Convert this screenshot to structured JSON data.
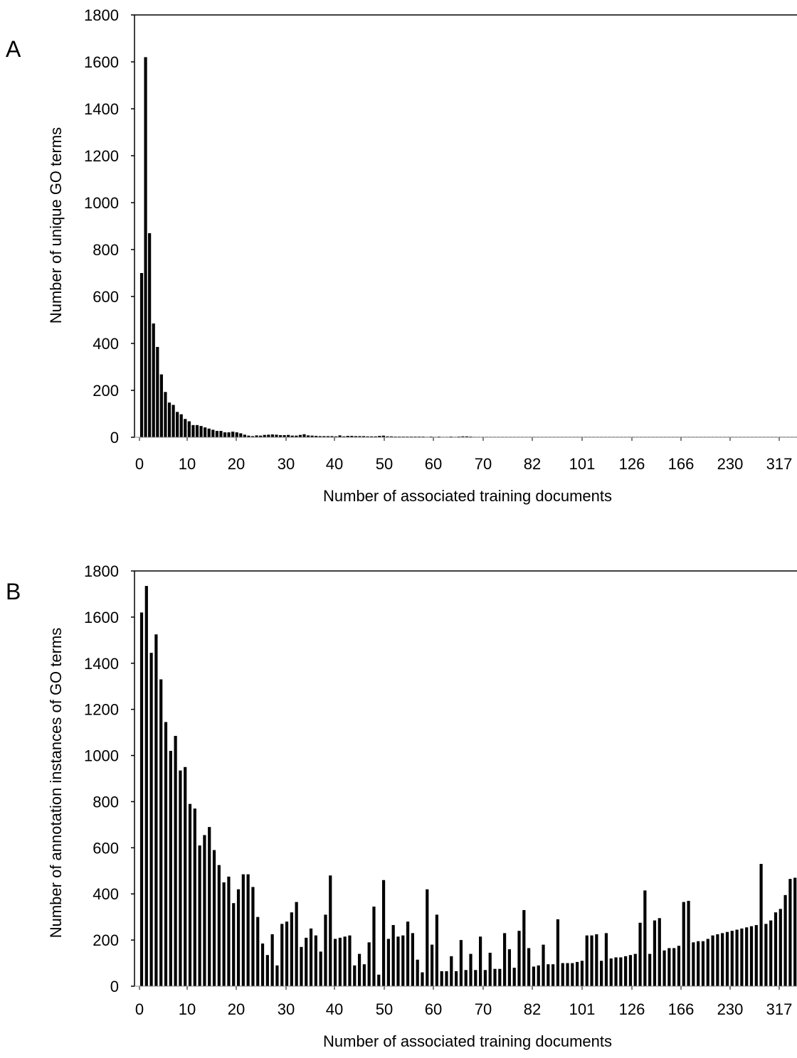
{
  "chart_data": [
    {
      "type": "bar",
      "panel_label": "A",
      "title": "",
      "xlabel": "Number of associated training documents",
      "ylabel": "Number of unique GO terms",
      "ylim": [
        0,
        1800
      ],
      "yticks": [
        "0",
        "200",
        "400",
        "600",
        "800",
        "1000",
        "1200",
        "1400",
        "1600",
        "1800"
      ],
      "xticks": [
        "0",
        "10",
        "20",
        "30",
        "40",
        "50",
        "60",
        "70",
        "82",
        "101",
        "126",
        "166",
        "230",
        "317"
      ],
      "grid": false,
      "legend": "none",
      "bar_color": "#000000",
      "values": [
        700,
        1620,
        870,
        485,
        385,
        268,
        193,
        148,
        138,
        108,
        98,
        78,
        68,
        52,
        52,
        48,
        42,
        37,
        32,
        27,
        27,
        21,
        21,
        24,
        21,
        17,
        11,
        7,
        5,
        8,
        7,
        10,
        11,
        12,
        11,
        9,
        9,
        10,
        7,
        7,
        10,
        13,
        8,
        7,
        6,
        5,
        5,
        5,
        5,
        4,
        8,
        4,
        6,
        6,
        5,
        5,
        5,
        4,
        4,
        4,
        6,
        7,
        4,
        4,
        3,
        3,
        3,
        3,
        3,
        3,
        3,
        3,
        2,
        3,
        2,
        3,
        2,
        2,
        3,
        2,
        3,
        4,
        4,
        3,
        2,
        2,
        2,
        2,
        2,
        2,
        2,
        2,
        2,
        2,
        2,
        2,
        2,
        2,
        2,
        2,
        2,
        2,
        2,
        2,
        2,
        2,
        2,
        2,
        2,
        2,
        2,
        2,
        2,
        2,
        2,
        2,
        2,
        2,
        2,
        2,
        2,
        2,
        2,
        2,
        2,
        2,
        2,
        2,
        2,
        2,
        2,
        2,
        2,
        2,
        2,
        2,
        2,
        2,
        2,
        2,
        2,
        2,
        2,
        2,
        2,
        2,
        2,
        2,
        2,
        2,
        2,
        2,
        2,
        2,
        2,
        2,
        2,
        2,
        2,
        2,
        2,
        2,
        2,
        2,
        2,
        2
      ]
    },
    {
      "type": "bar",
      "panel_label": "B",
      "title": "",
      "xlabel": "Number of associated training documents",
      "ylabel": "Number of  annotation instances of GO terms",
      "ylim": [
        0,
        1800
      ],
      "yticks": [
        "0",
        "200",
        "400",
        "600",
        "800",
        "1000",
        "1200",
        "1400",
        "1600",
        "1800"
      ],
      "xticks": [
        "0",
        "10",
        "20",
        "30",
        "40",
        "50",
        "60",
        "70",
        "82",
        "101",
        "126",
        "166",
        "230",
        "317"
      ],
      "grid": false,
      "legend": "none",
      "bar_color": "#000000",
      "values": [
        1620,
        1735,
        1445,
        1525,
        1330,
        1145,
        1020,
        1085,
        935,
        950,
        790,
        770,
        610,
        655,
        690,
        590,
        525,
        450,
        475,
        360,
        420,
        485,
        485,
        430,
        300,
        185,
        135,
        225,
        90,
        270,
        280,
        320,
        365,
        170,
        210,
        250,
        220,
        150,
        310,
        480,
        205,
        210,
        215,
        220,
        90,
        140,
        95,
        190,
        345,
        50,
        460,
        205,
        265,
        215,
        220,
        280,
        230,
        115,
        60,
        420,
        180,
        310,
        65,
        65,
        130,
        65,
        200,
        70,
        140,
        70,
        215,
        70,
        145,
        75,
        75,
        230,
        160,
        80,
        240,
        330,
        165,
        85,
        90,
        180,
        95,
        95,
        290,
        100,
        100,
        100,
        105,
        110,
        220,
        220,
        225,
        110,
        230,
        120,
        125,
        125,
        130,
        135,
        140,
        275,
        415,
        140,
        285,
        295,
        155,
        165,
        165,
        175,
        365,
        370,
        190,
        195,
        195,
        205,
        220,
        225,
        230,
        235,
        240,
        245,
        250,
        255,
        260,
        265,
        530,
        270,
        285,
        320,
        335,
        395,
        465,
        470
      ]
    }
  ]
}
